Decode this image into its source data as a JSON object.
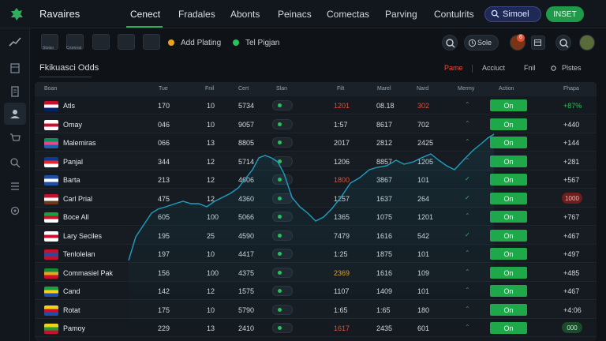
{
  "header": {
    "brand": "Ravaires",
    "nav": [
      "Cenect",
      "Fradales",
      "Abonts",
      "Peinacs",
      "Comectas",
      "Parving",
      "Contulrits"
    ],
    "user_name": "Simoel",
    "insert_label": "INSET"
  },
  "toolbar": {
    "captions": [
      "Stoiso",
      "Cromnat",
      "",
      ""
    ],
    "add_label": "Add Plating",
    "tel_label": "Tel Pigjan",
    "sale_label": "Sole",
    "badge_count": "6"
  },
  "panel": {
    "title": "Fkikuasci Odds",
    "filters": [
      "Pame",
      "Acciuct",
      "Fnil",
      "Plstes"
    ]
  },
  "table": {
    "headers": [
      "Boan",
      "Tue",
      "Fnil",
      "Cert",
      "Slan",
      "Filt",
      "Marel",
      "Nard",
      "Mermy",
      "Action",
      "Fhapa"
    ],
    "rows": [
      {
        "name": "Atls",
        "c1": "170",
        "c2": "10",
        "c3": "5734",
        "c5": "1201",
        "c6": "08.18",
        "c7": "302",
        "action": "On",
        "tail": "+87%",
        "c5_color": "#e2503a",
        "c7_color": "#e2503a",
        "tail_color": "#27c25a"
      },
      {
        "name": "Omay",
        "c1": "046",
        "c2": "10",
        "c3": "9057",
        "c5": "1:57",
        "c6": "8617",
        "c7": "702",
        "action": "On",
        "tail": "+440"
      },
      {
        "name": "Malemiras",
        "c1": "066",
        "c2": "13",
        "c3": "8805",
        "c5": "2017",
        "c6": "2812",
        "c7": "2425",
        "action": "On",
        "tail": "+144"
      },
      {
        "name": "Panjal",
        "c1": "344",
        "c2": "12",
        "c3": "5714",
        "c5": "1206",
        "c6": "8857",
        "c7": "1205",
        "action": "On",
        "tail": "+281"
      },
      {
        "name": "Barta",
        "c1": "213",
        "c2": "12",
        "c3": "4606",
        "c5": "1800",
        "c6": "3867",
        "c7": "101",
        "action": "On",
        "tail": "+567",
        "c5_color": "#e2503a"
      },
      {
        "name": "Carl Prial",
        "c1": "475",
        "c2": "12",
        "c3": "4360",
        "c5": "1257",
        "c6": "1637",
        "c7": "264",
        "action": "On",
        "tail": "1000",
        "tail_pill": "#6d1f1f"
      },
      {
        "name": "Boce All",
        "c1": "605",
        "c2": "100",
        "c3": "5066",
        "c5": "1365",
        "c6": "1075",
        "c7": "1201",
        "action": "On",
        "tail": "+767"
      },
      {
        "name": "Lary Seciles",
        "c1": "195",
        "c2": "25",
        "c3": "4590",
        "c5": "7479",
        "c6": "1616",
        "c7": "542",
        "action": "On",
        "tail": "+467"
      },
      {
        "name": "Tenlolelan",
        "c1": "197",
        "c2": "10",
        "c3": "4417",
        "c5": "1:25",
        "c6": "1875",
        "c7": "101",
        "action": "On",
        "tail": "+497"
      },
      {
        "name": "Commasiel Pak",
        "c1": "156",
        "c2": "100",
        "c3": "4375",
        "c5": "2369",
        "c6": "1616",
        "c7": "109",
        "action": "On",
        "tail": "+485",
        "c5_color": "#e8a21c"
      },
      {
        "name": "Cand",
        "c1": "142",
        "c2": "12",
        "c3": "1575",
        "c5": "1107",
        "c6": "1409",
        "c7": "101",
        "action": "On",
        "tail": "+467"
      },
      {
        "name": "Rotat",
        "c1": "175",
        "c2": "10",
        "c3": "5790",
        "c5": "1:65",
        "c6": "1:65",
        "c7": "180",
        "action": "On",
        "tail": "+4:06"
      },
      {
        "name": "Pamoy",
        "c1": "229",
        "c2": "13",
        "c3": "2410",
        "c5": "1617",
        "c6": "2435",
        "c7": "601",
        "action": "On",
        "tail": "000",
        "c5_color": "#e2503a",
        "tail_pill": "#1b4a2c"
      }
    ]
  },
  "colors": {
    "accent_green": "#1fa84a",
    "accent_red": "#e2503a",
    "bg": "#0f1318"
  }
}
